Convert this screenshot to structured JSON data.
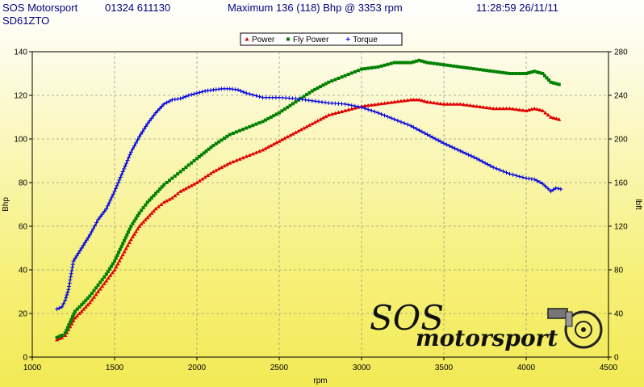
{
  "header": {
    "company": "SOS Motorsport",
    "phone": "01324 611130",
    "maximum": "Maximum 136 (118) Bhp @ 3353 rpm",
    "datetime": "11:28:59 26/11/11",
    "registration": "SD61ZTO"
  },
  "logo": {
    "line1": "SOS",
    "line2": "motorsport"
  },
  "chart_data": {
    "type": "line",
    "xlabel": "rpm",
    "ylabel": "Bhp",
    "y2label": "lbft",
    "xlim": [
      1000,
      4500
    ],
    "ylim": [
      0,
      140
    ],
    "y2lim": [
      0,
      280
    ],
    "xticks": [
      1000,
      1500,
      2000,
      2500,
      3000,
      3500,
      4000,
      4500
    ],
    "yticks": [
      0,
      20,
      40,
      60,
      80,
      100,
      120,
      140
    ],
    "y2ticks": [
      0,
      40,
      80,
      120,
      160,
      200,
      240,
      280
    ],
    "grid": true,
    "legend_position": "top-center",
    "series": [
      {
        "name": "Power",
        "axis": "left",
        "color": "#e00000",
        "marker": "triangle",
        "x": [
          1150,
          1180,
          1200,
          1230,
          1260,
          1300,
          1350,
          1400,
          1450,
          1500,
          1550,
          1600,
          1650,
          1700,
          1750,
          1800,
          1850,
          1900,
          1950,
          2000,
          2100,
          2200,
          2300,
          2400,
          2500,
          2600,
          2700,
          2800,
          2900,
          3000,
          3100,
          3200,
          3300,
          3350,
          3400,
          3500,
          3600,
          3700,
          3800,
          3900,
          4000,
          4050,
          4100,
          4150,
          4200
        ],
        "values": [
          8,
          9,
          10,
          14,
          18,
          21,
          25,
          30,
          35,
          40,
          47,
          54,
          60,
          64,
          68,
          71,
          73,
          76,
          78,
          80,
          85,
          89,
          92,
          95,
          99,
          103,
          107,
          111,
          113,
          115,
          116,
          117,
          118,
          118,
          117,
          116,
          116,
          115,
          114,
          114,
          113,
          114,
          113,
          110,
          109
        ]
      },
      {
        "name": "Fly Power",
        "axis": "left",
        "color": "#008000",
        "marker": "square",
        "x": [
          1150,
          1180,
          1200,
          1230,
          1260,
          1300,
          1350,
          1400,
          1450,
          1500,
          1550,
          1600,
          1650,
          1700,
          1750,
          1800,
          1850,
          1900,
          1950,
          2000,
          2100,
          2200,
          2300,
          2400,
          2500,
          2600,
          2700,
          2800,
          2900,
          3000,
          3100,
          3200,
          3300,
          3350,
          3400,
          3500,
          3600,
          3700,
          3800,
          3900,
          4000,
          4050,
          4100,
          4150,
          4200
        ],
        "values": [
          9,
          10,
          11,
          16,
          21,
          24,
          28,
          33,
          38,
          44,
          52,
          60,
          66,
          71,
          75,
          79,
          82,
          85,
          88,
          91,
          97,
          102,
          105,
          108,
          112,
          117,
          122,
          126,
          129,
          132,
          133,
          135,
          135,
          136,
          135,
          134,
          133,
          132,
          131,
          130,
          130,
          131,
          130,
          126,
          125
        ]
      },
      {
        "name": "Torque",
        "axis": "right",
        "color": "#0000e0",
        "marker": "plus",
        "x": [
          1150,
          1180,
          1200,
          1220,
          1250,
          1300,
          1350,
          1400,
          1450,
          1500,
          1550,
          1600,
          1650,
          1700,
          1750,
          1800,
          1850,
          1900,
          1950,
          2000,
          2050,
          2100,
          2150,
          2200,
          2250,
          2300,
          2400,
          2500,
          2600,
          2700,
          2800,
          2900,
          3000,
          3100,
          3200,
          3300,
          3400,
          3500,
          3600,
          3700,
          3800,
          3900,
          4000,
          4050,
          4100,
          4150,
          4180,
          4210
        ],
        "values": [
          44,
          46,
          52,
          62,
          88,
          100,
          112,
          126,
          136,
          152,
          170,
          188,
          202,
          214,
          224,
          232,
          236,
          237,
          240,
          242,
          244,
          245,
          246,
          246,
          245,
          242,
          238,
          238,
          237,
          235,
          233,
          232,
          229,
          224,
          218,
          212,
          204,
          196,
          189,
          182,
          174,
          168,
          164,
          163,
          159,
          152,
          155,
          154
        ]
      }
    ]
  }
}
